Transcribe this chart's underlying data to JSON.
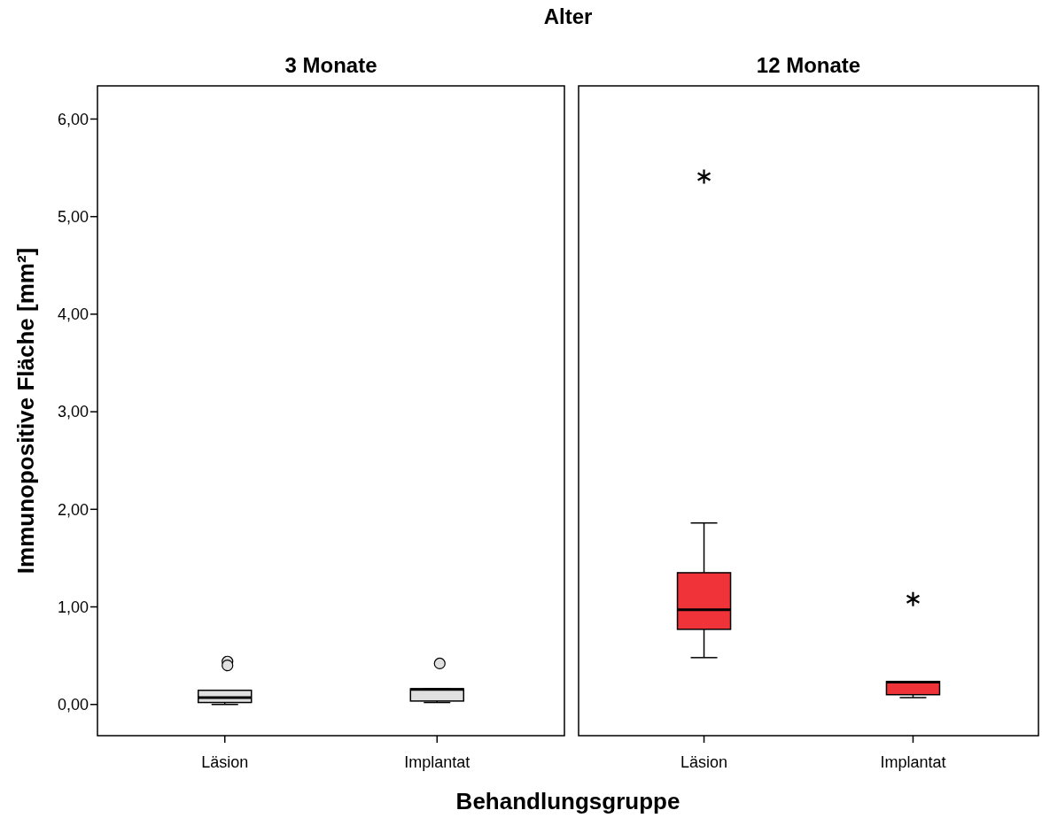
{
  "chart_data": [
    {
      "type": "box",
      "title": "3 Monate",
      "annotations": [
        "Alter"
      ],
      "xlabel": "Behandlungsgruppe",
      "ylabel": "Immunopositive Fläche [mm²]",
      "categories": [
        "Läsion",
        "Implantat"
      ],
      "marker": "circle",
      "ylim": [
        -0.32,
        6.34
      ],
      "yticks": [
        {
          "value": 0,
          "label": "0,00"
        },
        {
          "value": 1,
          "label": "1,00"
        },
        {
          "value": 2,
          "label": "2,00"
        },
        {
          "value": 3,
          "label": "3,00"
        },
        {
          "value": 4,
          "label": "4,00"
        },
        {
          "value": 5,
          "label": "5,00"
        },
        {
          "value": 6,
          "label": "6,00"
        }
      ],
      "grid": false,
      "series": [
        {
          "color": "#e0e0e0",
          "boxes": [
            {
              "low": 0.0,
              "q1": 0.02,
              "median": 0.07,
              "q3": 0.145,
              "high": 0.145,
              "outliers": [
                0.44,
                0.4
              ]
            },
            {
              "low": 0.02,
              "q1": 0.035,
              "median": 0.155,
              "q3": 0.16,
              "high": 0.16,
              "outliers": [
                0.42
              ]
            }
          ]
        }
      ]
    },
    {
      "type": "box",
      "title": "12 Monate",
      "categories": [
        "Läsion",
        "Implantat"
      ],
      "marker": "star",
      "tick_labels": "x",
      "ylim": [
        -0.32,
        6.34
      ],
      "grid": false,
      "series": [
        {
          "color": "#ef3339",
          "boxes": [
            {
              "low": 0.48,
              "q1": 0.77,
              "median": 0.97,
              "q3": 1.35,
              "high": 1.86,
              "outliers": [
                5.41
              ]
            },
            {
              "low": 0.07,
              "q1": 0.1,
              "median": 0.23,
              "q3": 0.235,
              "high": 0.235,
              "outliers": [
                1.08
              ]
            }
          ]
        }
      ]
    }
  ]
}
